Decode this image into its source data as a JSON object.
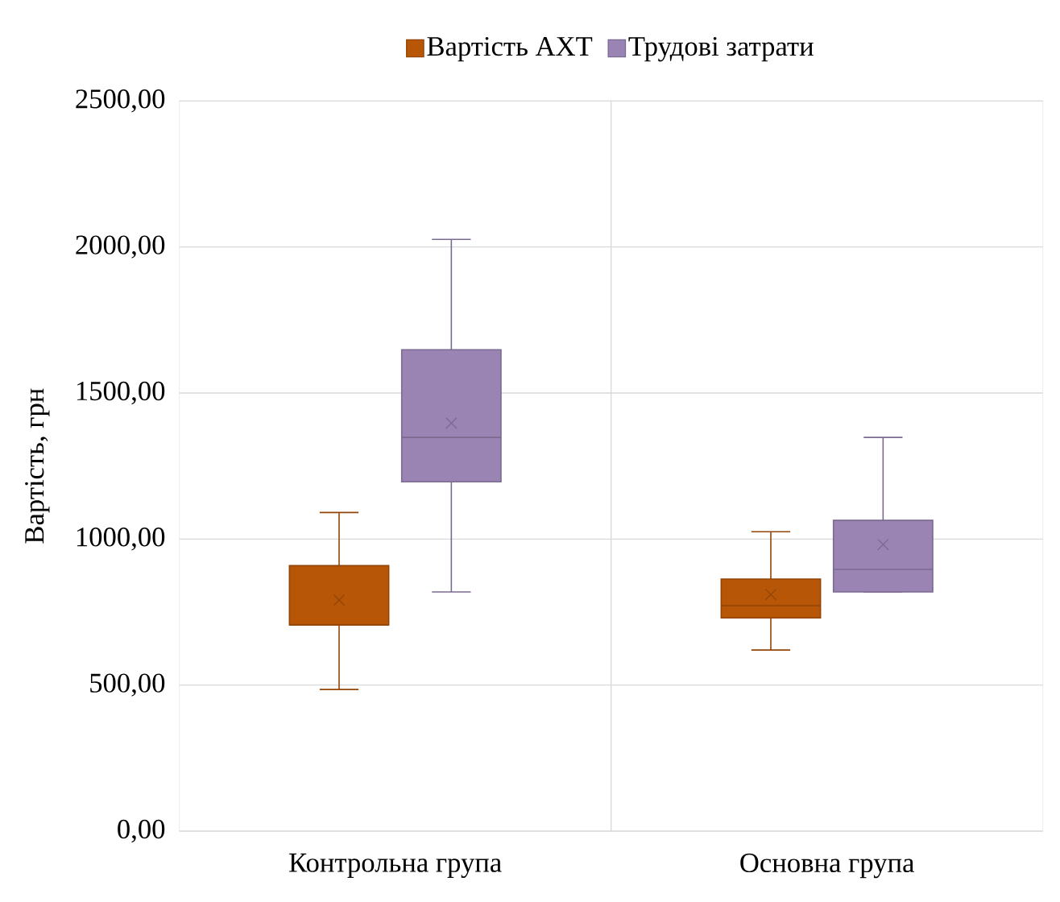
{
  "chart_data": {
    "type": "box",
    "categories": [
      "Контрольна група",
      "Основна група"
    ],
    "ylabel": "Вартість, грн",
    "ylim": [
      0,
      2500
    ],
    "yticks": [
      {
        "value": 0,
        "label": "0,00"
      },
      {
        "value": 500,
        "label": "500,00"
      },
      {
        "value": 1000,
        "label": "1000,00"
      },
      {
        "value": 1500,
        "label": "1500,00"
      },
      {
        "value": 2000,
        "label": "2000,00"
      },
      {
        "value": 2500,
        "label": "2500,00"
      }
    ],
    "grid": true,
    "legend": "top",
    "marker": "cross",
    "series": [
      {
        "name": "Вартість АХТ",
        "color": "#b75607",
        "boxes": [
          {
            "low": 485,
            "q1": 706,
            "median": 706,
            "q3": 909,
            "high": 1091,
            "mean": 791
          },
          {
            "low": 620,
            "q1": 730,
            "median": 772,
            "q3": 863,
            "high": 1025,
            "mean": 810
          }
        ]
      },
      {
        "name": "Трудові затрати",
        "color": "#9a84b4",
        "boxes": [
          {
            "low": 819,
            "q1": 1196,
            "median": 1348,
            "q3": 1648,
            "high": 2026,
            "mean": 1397
          },
          {
            "low": 819,
            "q1": 819,
            "median": 896,
            "q3": 1064,
            "high": 1348,
            "mean": 981
          }
        ]
      }
    ]
  }
}
